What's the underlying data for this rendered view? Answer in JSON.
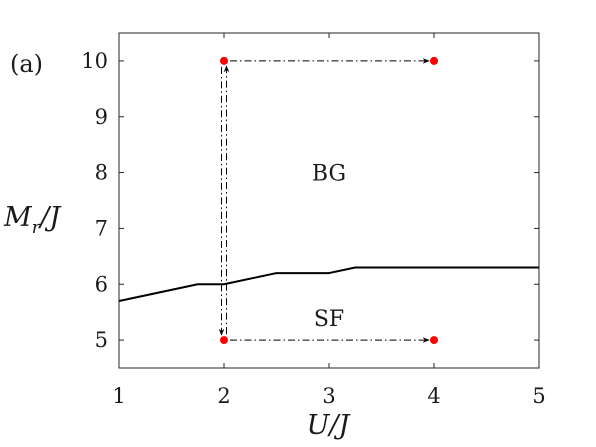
{
  "chart_data": {
    "type": "line",
    "panel_label": "(a)",
    "xlabel": "U/J",
    "ylabel": "M_r/J",
    "xlim": [
      1,
      5
    ],
    "ylim": [
      4.5,
      10.5
    ],
    "xticks": [
      1,
      2,
      3,
      4,
      5
    ],
    "yticks": [
      5,
      6,
      7,
      8,
      9,
      10
    ],
    "grid": false,
    "series": [
      {
        "style": "solid",
        "color": "#000000",
        "x": [
          1.0,
          1.75,
          2.0,
          2.5,
          3.0,
          3.25,
          5.0
        ],
        "y": [
          5.7,
          6.0,
          6.0,
          6.2,
          6.2,
          6.3,
          6.3
        ]
      }
    ],
    "points": [
      {
        "x": 2,
        "y": 10
      },
      {
        "x": 4,
        "y": 10
      },
      {
        "x": 2,
        "y": 5
      },
      {
        "x": 4,
        "y": 5
      }
    ],
    "point_color": "#ff0000",
    "arrows": [
      {
        "from": [
          2,
          10
        ],
        "to": [
          4,
          10
        ]
      },
      {
        "from": [
          2,
          5
        ],
        "to": [
          4,
          5
        ]
      },
      {
        "from": [
          2,
          10
        ],
        "to": [
          2,
          5
        ]
      },
      {
        "from": [
          2,
          5
        ],
        "to": [
          2,
          10
        ]
      }
    ],
    "annotations": [
      {
        "text": "BG",
        "x": 3.0,
        "y": 8.0
      },
      {
        "text": "SF",
        "x": 3.0,
        "y": 5.4
      }
    ]
  }
}
